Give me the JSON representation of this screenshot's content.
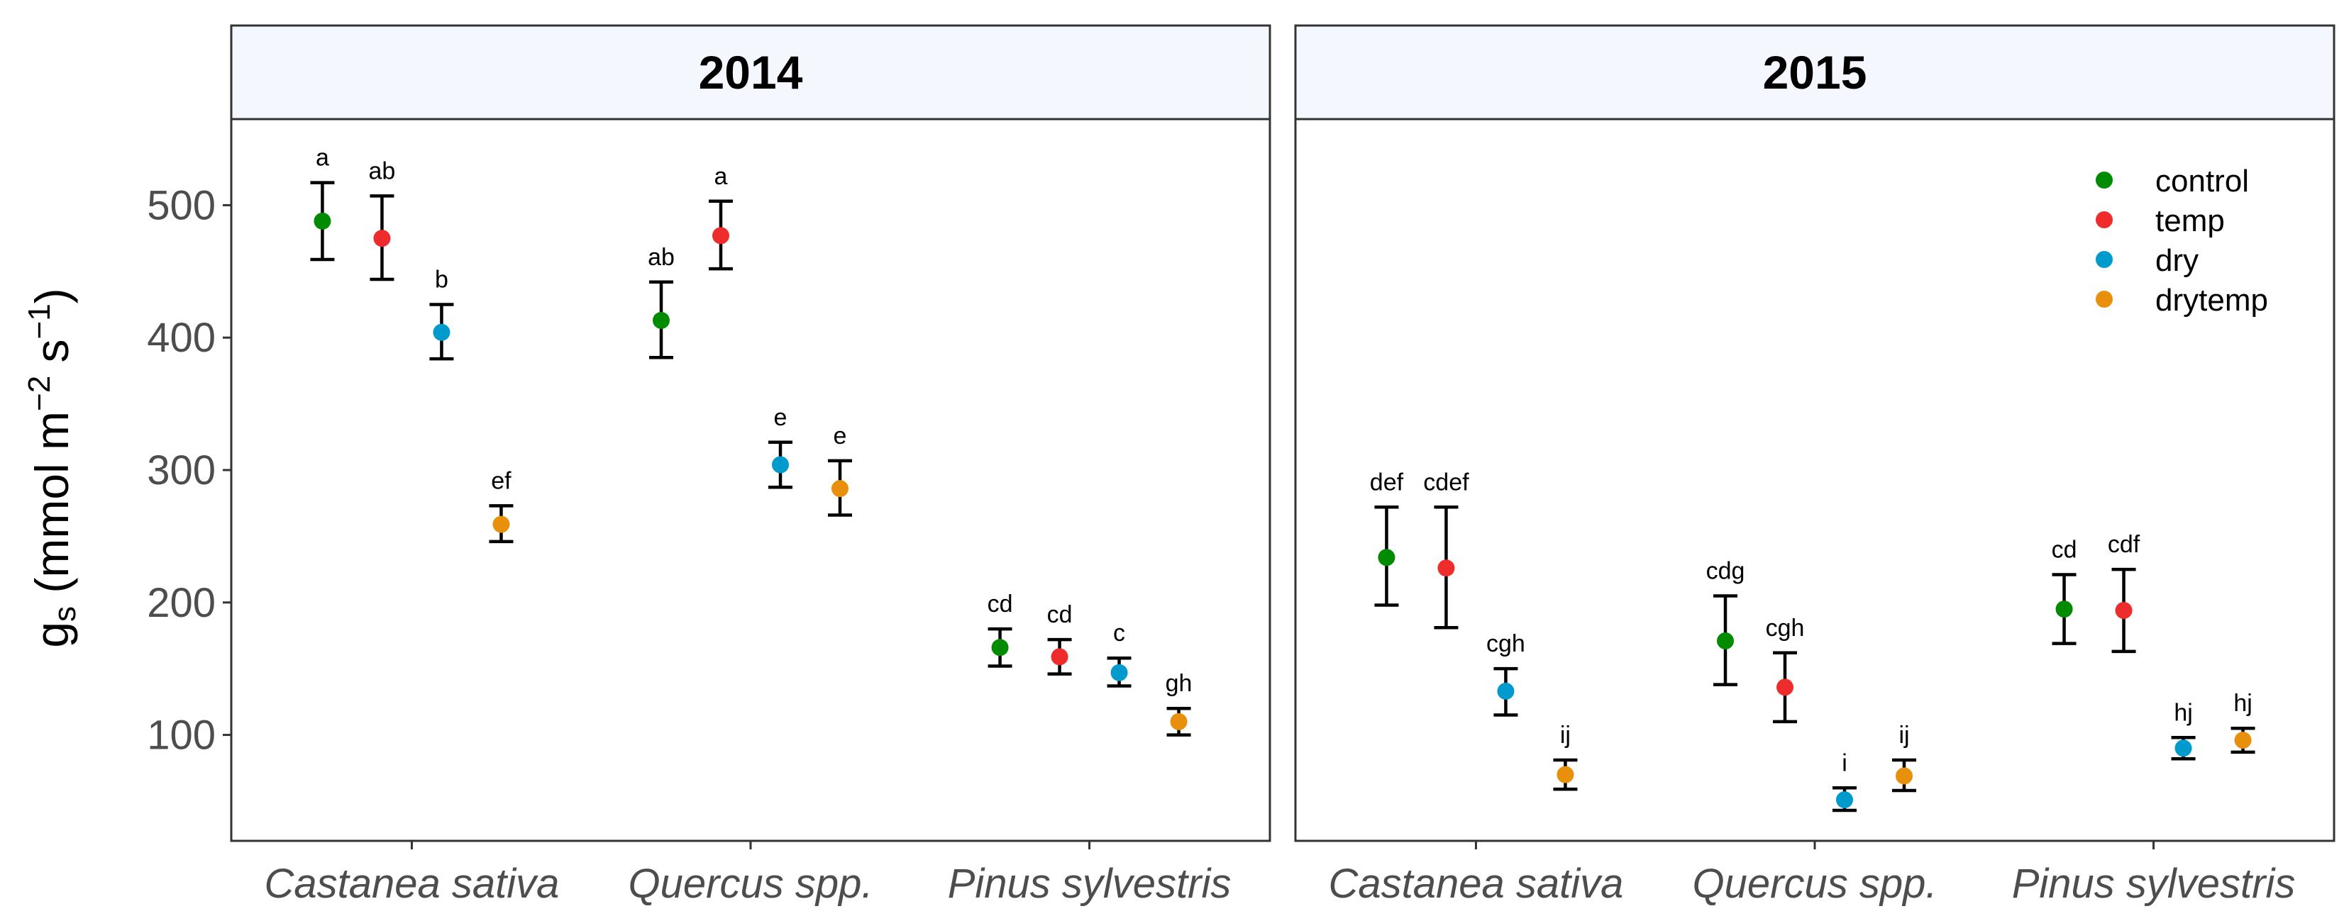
{
  "chart_data": {
    "type": "scatter",
    "y_axis": {
      "label_base": "g",
      "label_sub": "s",
      "label_unit_open": " (mmol m",
      "label_exp1": "−2",
      "label_mid": " s",
      "label_exp2": "−1",
      "label_close": ")",
      "ticks": [
        100,
        200,
        300,
        400,
        500
      ],
      "ylim": [
        20,
        565
      ]
    },
    "categories": [
      "Castanea sativa",
      "Quercus spp.",
      "Pinus sylvestris"
    ],
    "legend": [
      {
        "name": "control",
        "color": "#008B00"
      },
      {
        "name": "temp",
        "color": "#EE2C2C"
      },
      {
        "name": "dry",
        "color": "#009ACD"
      },
      {
        "name": "drytemp",
        "color": "#E8900C"
      }
    ],
    "panels": [
      {
        "title": "2014",
        "groups": [
          {
            "category": "Castanea sativa",
            "points": [
              {
                "series": "control",
                "mean": 488,
                "lo": 459,
                "hi": 517,
                "letter": "a"
              },
              {
                "series": "temp",
                "mean": 475,
                "lo": 444,
                "hi": 507,
                "letter": "ab"
              },
              {
                "series": "dry",
                "mean": 404,
                "lo": 384,
                "hi": 425,
                "letter": "b"
              },
              {
                "series": "drytemp",
                "mean": 259,
                "lo": 246,
                "hi": 273,
                "letter": "ef"
              }
            ]
          },
          {
            "category": "Quercus spp.",
            "points": [
              {
                "series": "control",
                "mean": 413,
                "lo": 385,
                "hi": 442,
                "letter": "ab"
              },
              {
                "series": "temp",
                "mean": 477,
                "lo": 452,
                "hi": 503,
                "letter": "a"
              },
              {
                "series": "dry",
                "mean": 304,
                "lo": 287,
                "hi": 321,
                "letter": "e"
              },
              {
                "series": "drytemp",
                "mean": 286,
                "lo": 266,
                "hi": 307,
                "letter": "e"
              }
            ]
          },
          {
            "category": "Pinus sylvestris",
            "points": [
              {
                "series": "control",
                "mean": 166,
                "lo": 152,
                "hi": 180,
                "letter": "cd"
              },
              {
                "series": "temp",
                "mean": 159,
                "lo": 146,
                "hi": 172,
                "letter": "cd"
              },
              {
                "series": "dry",
                "mean": 147,
                "lo": 137,
                "hi": 158,
                "letter": "c"
              },
              {
                "series": "drytemp",
                "mean": 110,
                "lo": 100,
                "hi": 120,
                "letter": "gh"
              }
            ]
          }
        ]
      },
      {
        "title": "2015",
        "groups": [
          {
            "category": "Castanea sativa",
            "points": [
              {
                "series": "control",
                "mean": 234,
                "lo": 198,
                "hi": 272,
                "letter": "def"
              },
              {
                "series": "temp",
                "mean": 226,
                "lo": 181,
                "hi": 272,
                "letter": "cdef"
              },
              {
                "series": "dry",
                "mean": 133,
                "lo": 115,
                "hi": 150,
                "letter": "cgh"
              },
              {
                "series": "drytemp",
                "mean": 70,
                "lo": 59,
                "hi": 81,
                "letter": "ij"
              }
            ]
          },
          {
            "category": "Quercus spp.",
            "points": [
              {
                "series": "control",
                "mean": 171,
                "lo": 138,
                "hi": 205,
                "letter": "cdg"
              },
              {
                "series": "temp",
                "mean": 136,
                "lo": 110,
                "hi": 162,
                "letter": "cgh"
              },
              {
                "series": "dry",
                "mean": 51,
                "lo": 43,
                "hi": 60,
                "letter": "i"
              },
              {
                "series": "drytemp",
                "mean": 69,
                "lo": 58,
                "hi": 81,
                "letter": "ij"
              }
            ]
          },
          {
            "category": "Pinus sylvestris",
            "points": [
              {
                "series": "control",
                "mean": 195,
                "lo": 169,
                "hi": 221,
                "letter": "cd"
              },
              {
                "series": "temp",
                "mean": 194,
                "lo": 163,
                "hi": 225,
                "letter": "cdf"
              },
              {
                "series": "dry",
                "mean": 90,
                "lo": 82,
                "hi": 98,
                "letter": "hj"
              },
              {
                "series": "drytemp",
                "mean": 96,
                "lo": 87,
                "hi": 105,
                "letter": "hj"
              }
            ]
          }
        ]
      }
    ]
  }
}
